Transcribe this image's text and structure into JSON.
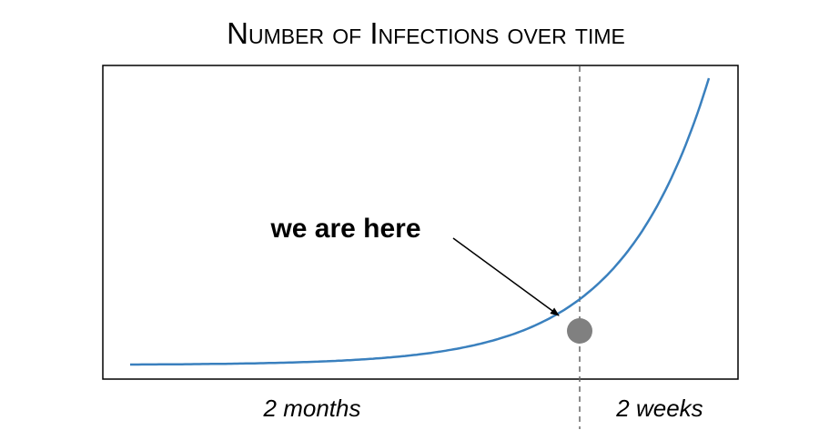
{
  "chart_data": {
    "type": "line",
    "title": "Number of Infections over time",
    "xlabel": "",
    "ylabel": "",
    "grid": false,
    "legend": "none",
    "x_tick_labels": [],
    "y_tick_labels": [],
    "series": [
      {
        "curve": "exponential",
        "color": "#3a80be"
      }
    ],
    "annotations": {
      "marker_label": "we are here",
      "marker_color": "#808080",
      "divider_style": "dashed",
      "periods": [
        "2 months",
        "2 weeks"
      ]
    }
  }
}
